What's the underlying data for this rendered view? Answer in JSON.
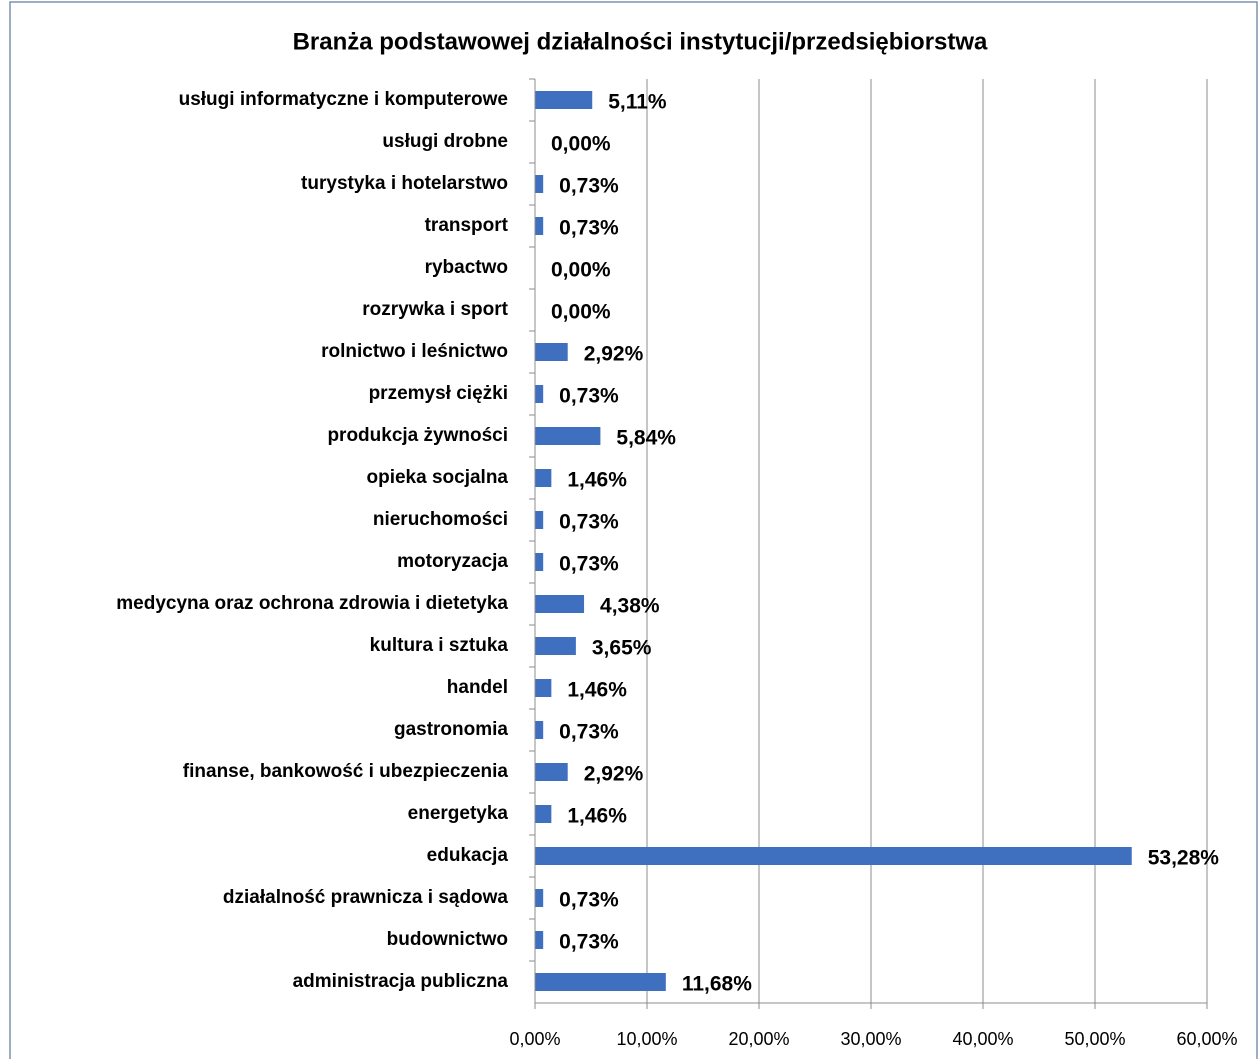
{
  "chart_data": {
    "type": "barh",
    "title": "Branża podstawowej działalności instytucji/przedsiębiorstwa",
    "categories": [
      "usługi informatyczne i komputerowe",
      "usługi drobne",
      "turystyka i hotelarstwo",
      "transport",
      "rybactwo",
      "rozrywka i sport",
      "rolnictwo i leśnictwo",
      "przemysł ciężki",
      "produkcja żywności",
      "opieka socjalna",
      "nieruchomości",
      "motoryzacja",
      "medycyna oraz ochrona zdrowia i dietetyka",
      "kultura i sztuka",
      "handel",
      "gastronomia",
      "finanse, bankowość i ubezpieczenia",
      "energetyka",
      "edukacja",
      "działalność prawnicza i sądowa",
      "budownictwo",
      "administracja publiczna"
    ],
    "values": [
      5.11,
      0,
      0.73,
      0.73,
      0,
      0,
      2.92,
      0.73,
      5.84,
      1.46,
      0.73,
      0.73,
      4.38,
      3.65,
      1.46,
      0.73,
      2.92,
      1.46,
      53.28,
      0.73,
      0.73,
      11.68
    ],
    "value_labels": [
      "5,11%",
      "0,00%",
      "0,73%",
      "0,73%",
      "0,00%",
      "0,00%",
      "2,92%",
      "0,73%",
      "5,84%",
      "1,46%",
      "0,73%",
      "0,73%",
      "4,38%",
      "3,65%",
      "1,46%",
      "0,73%",
      "2,92%",
      "1,46%",
      "53,28%",
      "0,73%",
      "0,73%",
      "11,68%"
    ],
    "color": "#3f6fbf",
    "xlim": [
      0,
      60
    ],
    "xticks": [
      {
        "value": 0,
        "label": "0,00%"
      },
      {
        "value": 10,
        "label": "10,00%"
      },
      {
        "value": 20,
        "label": "20,00%"
      },
      {
        "value": 30,
        "label": "30,00%"
      },
      {
        "value": 40,
        "label": "40,00%"
      },
      {
        "value": 50,
        "label": "50,00%"
      },
      {
        "value": 60,
        "label": "60,00%"
      }
    ],
    "grid": true
  }
}
